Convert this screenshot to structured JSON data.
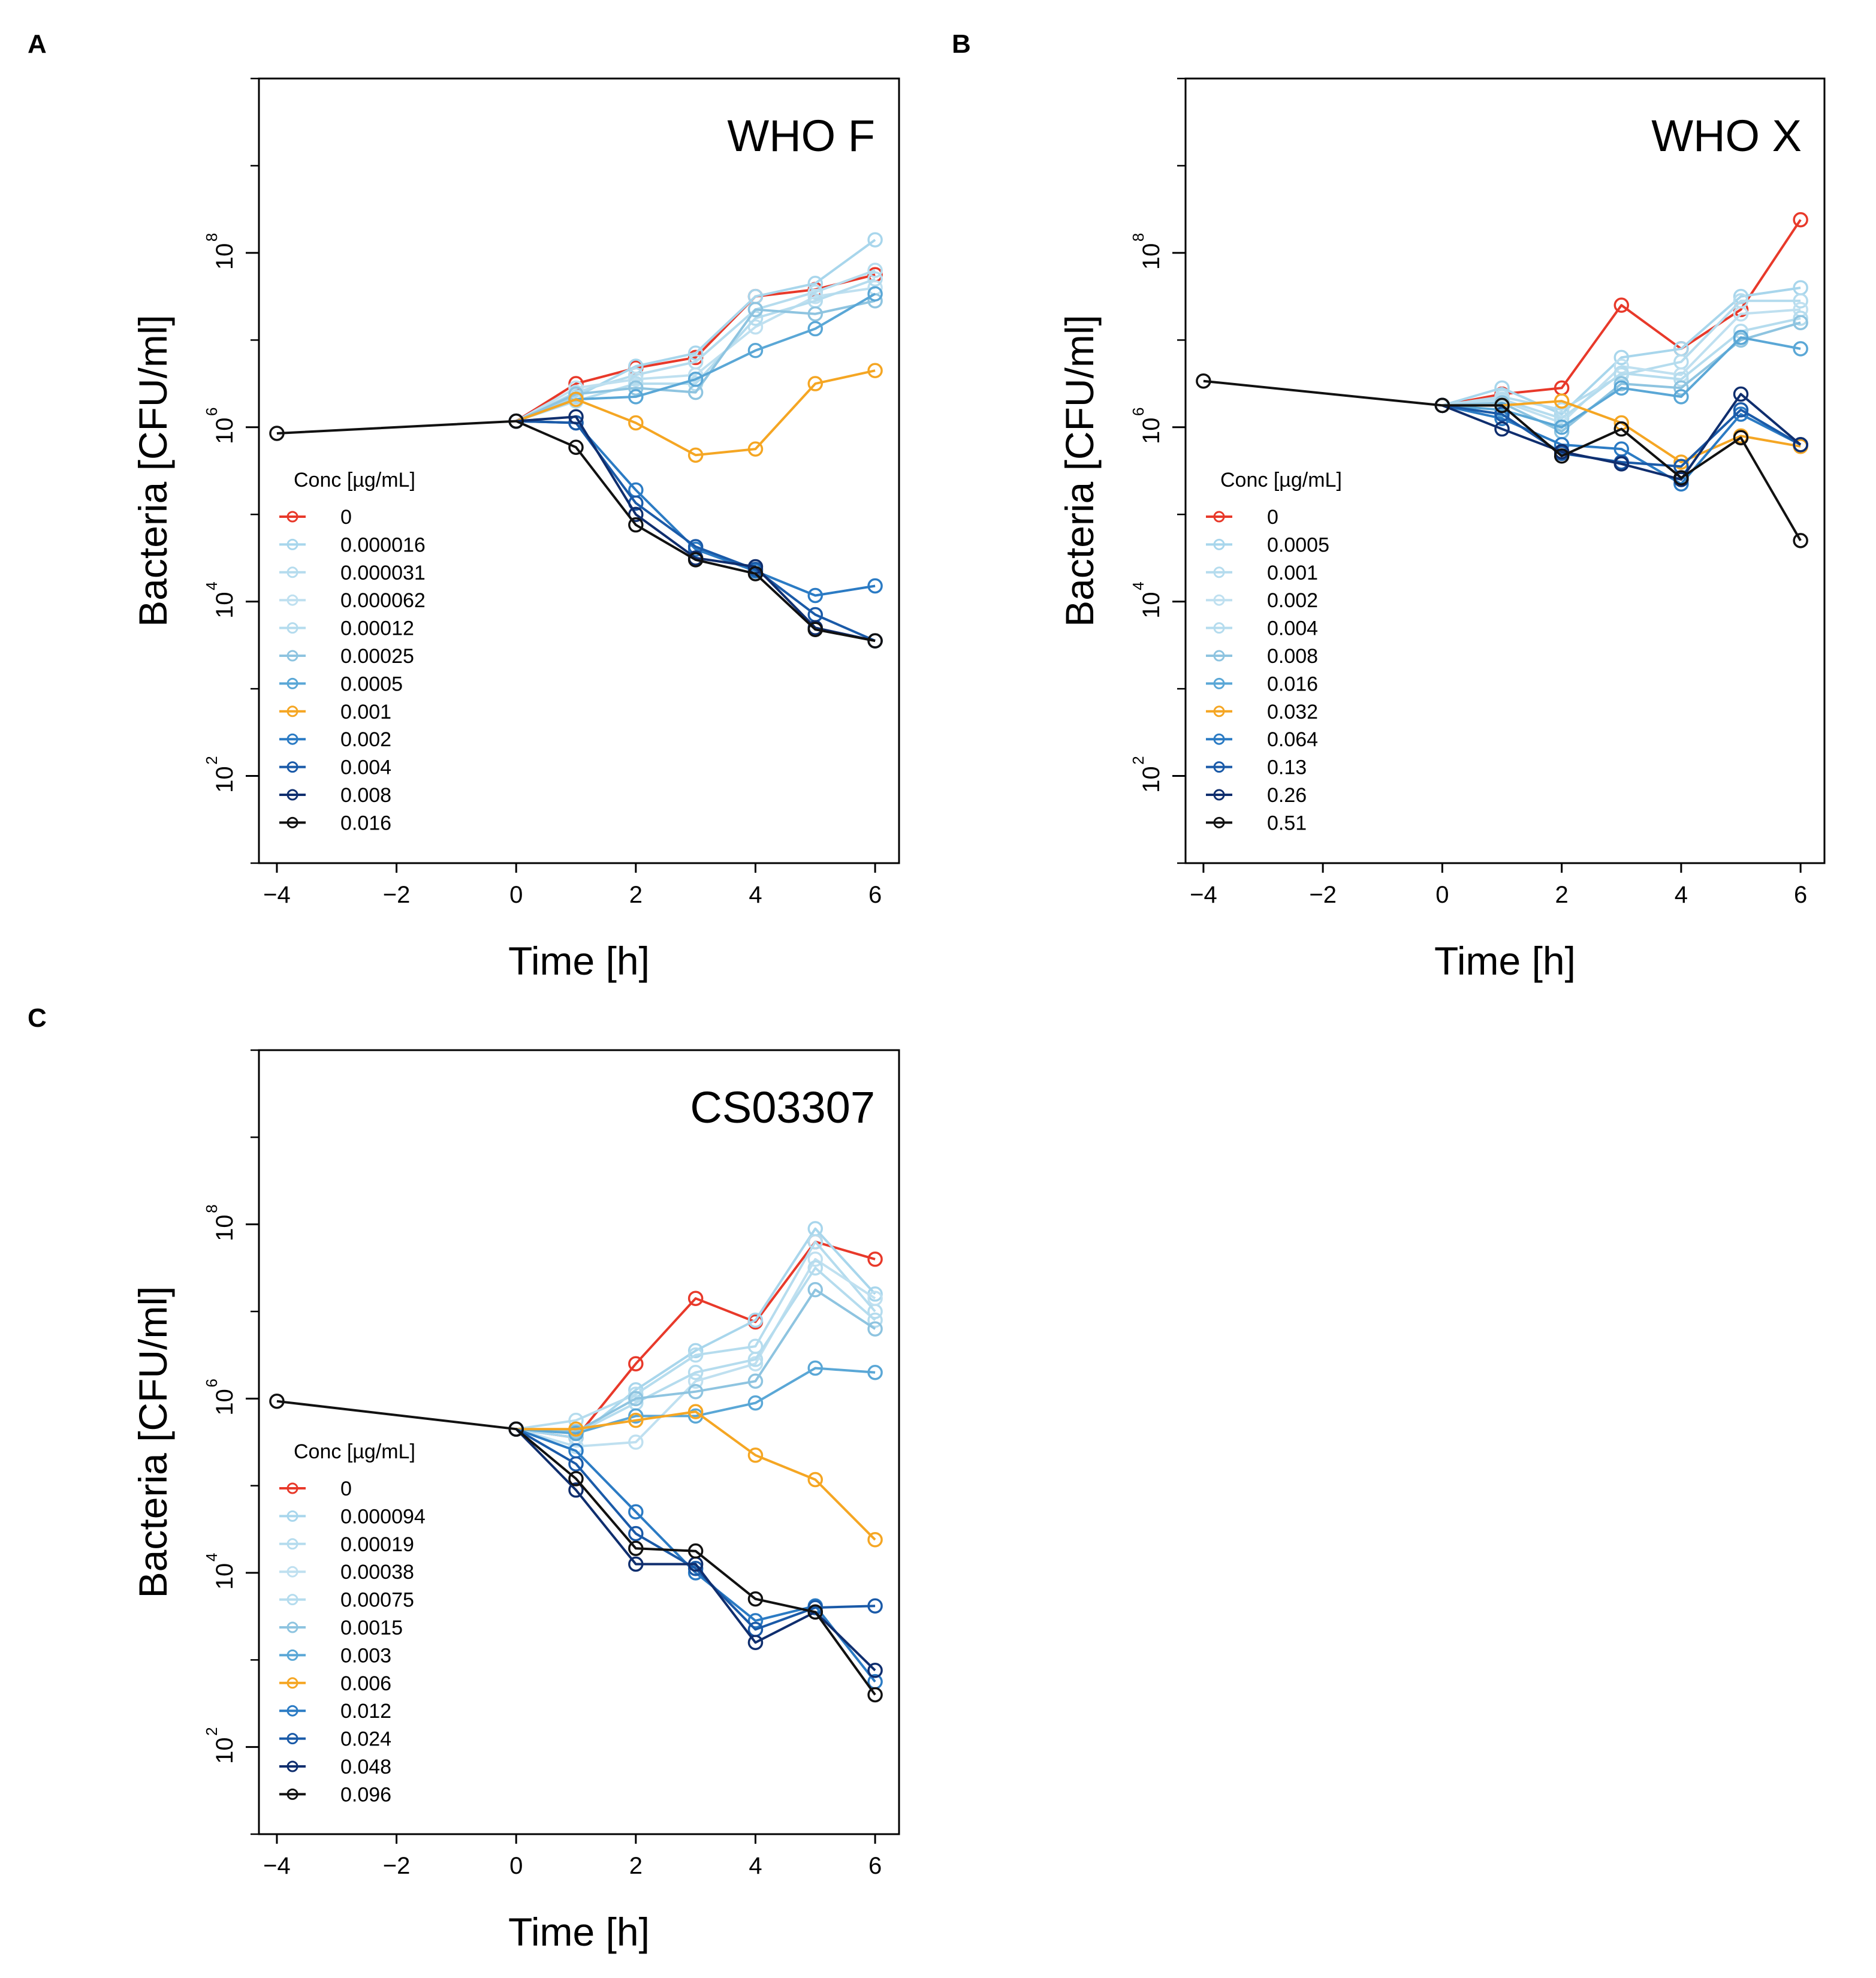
{
  "colors": {
    "red": "#e8392a",
    "orange": "#f5a623",
    "black": "#111111",
    "light1": "#a8d6ec",
    "light2": "#b5dcee",
    "light3": "#bfe0f0",
    "mid1": "#8ec4e0",
    "mid2": "#5aa7d6",
    "blue1": "#2b7bc4",
    "blue2": "#1a5aa8",
    "navy": "#0f2e6e"
  },
  "chart_data": [
    {
      "type": "line",
      "panel": "A",
      "title": "WHO F",
      "xlabel": "Time [h]",
      "ylabel": "Bacteria [CFU/ml]",
      "xlim": [
        -4.3,
        6.4
      ],
      "ylim_log10": [
        1.0,
        10.0
      ],
      "x_ticks": [
        "−4",
        "−2",
        "0",
        "2",
        "4",
        "6"
      ],
      "x_tick_values": [
        -4,
        -2,
        0,
        2,
        4,
        6
      ],
      "y_tick_exponents": [
        "2",
        "4",
        "6",
        "8"
      ],
      "y_tick_values": [
        2,
        4,
        6,
        8
      ],
      "legend_title": "Conc [µg/mL]",
      "series": [
        {
          "name": "0",
          "color": "red",
          "x": [
            0,
            1,
            2,
            3,
            4,
            5,
            6
          ],
          "log10": [
            6.07,
            6.5,
            6.68,
            6.8,
            7.5,
            7.58,
            7.75
          ]
        },
        {
          "name": "0.000016",
          "color": "light1",
          "x": [
            0,
            1,
            2,
            3,
            4,
            5,
            6
          ],
          "log10": [
            6.07,
            6.35,
            6.7,
            6.85,
            7.5,
            7.65,
            8.15
          ]
        },
        {
          "name": "0.000031",
          "color": "light2",
          "x": [
            0,
            1,
            2,
            3,
            4,
            5,
            6
          ],
          "log10": [
            6.07,
            6.4,
            6.6,
            6.75,
            7.35,
            7.55,
            7.8
          ]
        },
        {
          "name": "0.000062",
          "color": "light3",
          "x": [
            0,
            1,
            2,
            3,
            4,
            5,
            6
          ],
          "log10": [
            6.07,
            6.45,
            6.55,
            6.6,
            7.15,
            7.5,
            7.6
          ]
        },
        {
          "name": "0.00012",
          "color": "light2",
          "x": [
            0,
            1,
            2,
            3,
            4,
            5,
            6
          ],
          "log10": [
            6.07,
            6.3,
            6.5,
            6.5,
            7.25,
            7.45,
            7.7
          ]
        },
        {
          "name": "0.00025",
          "color": "mid1",
          "x": [
            0,
            1,
            2,
            3,
            4,
            5,
            6
          ],
          "log10": [
            6.07,
            6.38,
            6.45,
            6.4,
            7.35,
            7.3,
            7.45
          ]
        },
        {
          "name": "0.0005",
          "color": "mid2",
          "x": [
            0,
            1,
            2,
            3,
            4,
            5,
            6
          ],
          "log10": [
            6.07,
            6.32,
            6.35,
            6.55,
            6.88,
            7.13,
            7.53
          ]
        },
        {
          "name": "0.001",
          "color": "orange",
          "x": [
            0,
            1,
            2,
            3,
            4,
            5,
            6
          ],
          "log10": [
            6.07,
            6.32,
            6.05,
            5.68,
            5.75,
            6.5,
            6.65
          ]
        },
        {
          "name": "0.002",
          "color": "blue1",
          "x": [
            0,
            1,
            2,
            3,
            4,
            5,
            6
          ],
          "log10": [
            6.07,
            6.05,
            5.28,
            4.6,
            4.35,
            4.07,
            4.18
          ]
        },
        {
          "name": "0.004",
          "color": "blue2",
          "x": [
            0,
            1,
            2,
            3,
            4,
            5,
            6
          ],
          "log10": [
            6.07,
            6.05,
            5.13,
            4.63,
            4.37,
            3.85,
            3.55
          ]
        },
        {
          "name": "0.008",
          "color": "navy",
          "x": [
            0,
            1,
            2,
            3,
            4,
            5,
            6
          ],
          "log10": [
            6.07,
            6.12,
            5.0,
            4.5,
            4.4,
            3.7,
            3.55
          ]
        },
        {
          "name": "0.016",
          "color": "black",
          "x": [
            -4,
            0,
            1,
            2,
            3,
            4,
            5,
            6
          ],
          "log10": [
            5.93,
            6.07,
            5.77,
            4.88,
            4.48,
            4.32,
            3.68,
            3.55
          ]
        }
      ]
    },
    {
      "type": "line",
      "panel": "B",
      "title": "WHO X",
      "xlabel": "Time [h]",
      "ylabel": "Bacteria [CFU/ml]",
      "xlim": [
        -4.3,
        6.4
      ],
      "ylim_log10": [
        1.0,
        10.0
      ],
      "x_ticks": [
        "−4",
        "−2",
        "0",
        "2",
        "4",
        "6"
      ],
      "x_tick_values": [
        -4,
        -2,
        0,
        2,
        4,
        6
      ],
      "y_tick_exponents": [
        "2",
        "4",
        "6",
        "8"
      ],
      "y_tick_values": [
        2,
        4,
        6,
        8
      ],
      "legend_title": "Conc [µg/mL]",
      "series": [
        {
          "name": "0",
          "color": "red",
          "x": [
            0,
            1,
            2,
            3,
            4,
            5,
            6
          ],
          "log10": [
            6.25,
            6.38,
            6.45,
            7.4,
            6.9,
            7.35,
            8.38
          ]
        },
        {
          "name": "0.0005",
          "color": "light1",
          "x": [
            0,
            1,
            2,
            3,
            4,
            5,
            6
          ],
          "log10": [
            6.25,
            6.45,
            6.15,
            6.8,
            6.9,
            7.5,
            7.6
          ]
        },
        {
          "name": "0.001",
          "color": "light2",
          "x": [
            0,
            1,
            2,
            3,
            4,
            5,
            6
          ],
          "log10": [
            6.25,
            6.35,
            6.2,
            6.6,
            6.75,
            7.45,
            7.45
          ]
        },
        {
          "name": "0.002",
          "color": "light3",
          "x": [
            0,
            1,
            2,
            3,
            4,
            5,
            6
          ],
          "log10": [
            6.25,
            6.3,
            6.05,
            6.7,
            6.6,
            7.3,
            7.35
          ]
        },
        {
          "name": "0.004",
          "color": "light2",
          "x": [
            0,
            1,
            2,
            3,
            4,
            5,
            6
          ],
          "log10": [
            6.25,
            6.32,
            6.1,
            6.62,
            6.55,
            7.1,
            7.25
          ]
        },
        {
          "name": "0.008",
          "color": "mid1",
          "x": [
            0,
            1,
            2,
            3,
            4,
            5,
            6
          ],
          "log10": [
            6.25,
            6.28,
            5.95,
            6.5,
            6.45,
            7.0,
            7.2
          ]
        },
        {
          "name": "0.016",
          "color": "mid2",
          "x": [
            0,
            1,
            2,
            3,
            4,
            5,
            6
          ],
          "log10": [
            6.25,
            6.2,
            6.0,
            6.45,
            6.35,
            7.03,
            6.9
          ]
        },
        {
          "name": "0.032",
          "color": "orange",
          "x": [
            0,
            1,
            2,
            3,
            4,
            5,
            6
          ],
          "log10": [
            6.25,
            6.25,
            6.3,
            6.05,
            5.6,
            5.9,
            5.78
          ]
        },
        {
          "name": "0.064",
          "color": "blue1",
          "x": [
            0,
            1,
            2,
            3,
            4,
            5,
            6
          ],
          "log10": [
            6.25,
            6.1,
            5.8,
            5.75,
            5.35,
            6.15,
            5.8
          ]
        },
        {
          "name": "0.13",
          "color": "blue2",
          "x": [
            0,
            1,
            2,
            3,
            4,
            5,
            6
          ],
          "log10": [
            6.25,
            6.15,
            5.7,
            5.6,
            5.55,
            6.2,
            5.8
          ]
        },
        {
          "name": "0.26",
          "color": "navy",
          "x": [
            0,
            1,
            2,
            3,
            4,
            5,
            6
          ],
          "log10": [
            6.25,
            5.98,
            5.72,
            5.58,
            5.4,
            6.38,
            5.8
          ]
        },
        {
          "name": "0.51",
          "color": "black",
          "x": [
            -4,
            0,
            1,
            2,
            3,
            4,
            5,
            6
          ],
          "log10": [
            6.53,
            6.25,
            6.25,
            5.67,
            5.98,
            5.42,
            5.88,
            4.7
          ]
        }
      ]
    },
    {
      "type": "line",
      "panel": "C",
      "title": "CS03307",
      "xlabel": "Time [h]",
      "ylabel": "Bacteria [CFU/ml]",
      "xlim": [
        -4.3,
        6.4
      ],
      "ylim_log10": [
        1.0,
        10.0
      ],
      "x_ticks": [
        "−4",
        "−2",
        "0",
        "2",
        "4",
        "6"
      ],
      "x_tick_values": [
        -4,
        -2,
        0,
        2,
        4,
        6
      ],
      "y_tick_exponents": [
        "2",
        "4",
        "6",
        "8"
      ],
      "y_tick_values": [
        2,
        4,
        6,
        8
      ],
      "legend_title": "Conc [µg/mL]",
      "series": [
        {
          "name": "0",
          "color": "red",
          "x": [
            0,
            1,
            2,
            3,
            4,
            5,
            6
          ],
          "log10": [
            5.65,
            5.55,
            6.4,
            7.15,
            6.88,
            7.8,
            7.6
          ]
        },
        {
          "name": "0.000094",
          "color": "light1",
          "x": [
            0,
            1,
            2,
            3,
            4,
            5,
            6
          ],
          "log10": [
            5.65,
            5.55,
            6.1,
            6.55,
            6.9,
            7.95,
            7.2
          ]
        },
        {
          "name": "0.00019",
          "color": "light2",
          "x": [
            0,
            1,
            2,
            3,
            4,
            5,
            6
          ],
          "log10": [
            5.65,
            5.75,
            6.05,
            6.5,
            6.6,
            7.8,
            7.0
          ]
        },
        {
          "name": "0.00038",
          "color": "light3",
          "x": [
            0,
            1,
            2,
            3,
            4,
            5,
            6
          ],
          "log10": [
            5.65,
            5.45,
            5.5,
            6.2,
            6.4,
            7.6,
            7.15
          ]
        },
        {
          "name": "0.00075",
          "color": "light2",
          "x": [
            0,
            1,
            2,
            3,
            4,
            5,
            6
          ],
          "log10": [
            5.65,
            5.6,
            5.95,
            6.3,
            6.45,
            7.5,
            6.9
          ]
        },
        {
          "name": "0.0015",
          "color": "mid1",
          "x": [
            0,
            1,
            2,
            3,
            4,
            5,
            6
          ],
          "log10": [
            5.65,
            5.62,
            6.0,
            6.08,
            6.2,
            7.25,
            6.8
          ]
        },
        {
          "name": "0.003",
          "color": "mid2",
          "x": [
            0,
            1,
            2,
            3,
            4,
            5,
            6
          ],
          "log10": [
            5.65,
            5.6,
            5.8,
            5.8,
            5.95,
            6.35,
            6.3
          ]
        },
        {
          "name": "0.006",
          "color": "orange",
          "x": [
            0,
            1,
            2,
            3,
            4,
            5,
            6
          ],
          "log10": [
            5.65,
            5.65,
            5.75,
            5.85,
            5.35,
            5.07,
            4.38
          ]
        },
        {
          "name": "0.012",
          "color": "blue1",
          "x": [
            0,
            1,
            2,
            3,
            4,
            5,
            6
          ],
          "log10": [
            5.65,
            5.4,
            4.7,
            4.0,
            3.45,
            3.62,
            2.75
          ]
        },
        {
          "name": "0.024",
          "color": "blue2",
          "x": [
            0,
            1,
            2,
            3,
            4,
            5,
            6
          ],
          "log10": [
            5.65,
            5.25,
            4.45,
            4.05,
            3.35,
            3.6,
            3.62
          ]
        },
        {
          "name": "0.048",
          "color": "navy",
          "x": [
            0,
            1,
            2,
            3,
            4,
            5,
            6
          ],
          "log10": [
            5.65,
            4.95,
            4.1,
            4.1,
            3.2,
            3.55,
            2.88
          ]
        },
        {
          "name": "0.096",
          "color": "black",
          "x": [
            -4,
            0,
            1,
            2,
            3,
            4,
            5,
            6
          ],
          "log10": [
            5.97,
            5.65,
            5.08,
            4.28,
            4.25,
            3.7,
            3.55,
            2.6
          ]
        }
      ]
    }
  ]
}
